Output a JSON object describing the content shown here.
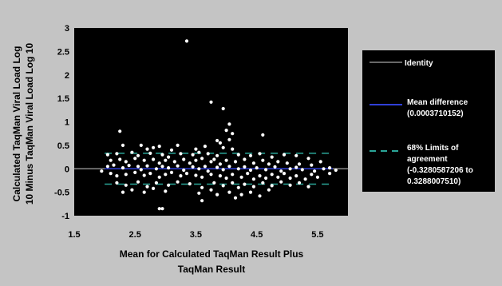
{
  "chart_data": {
    "type": "scatter",
    "xlabel": [
      "Mean for Calculated TaqMan Result Plus",
      "TaqMan Result"
    ],
    "ylabel": [
      "Calculated TaqMan Viral Load Log",
      "10 Minus TaqMan Viral Load Log 10"
    ],
    "xlim": [
      1.5,
      6.0
    ],
    "ylim": [
      -1,
      3
    ],
    "xticks": [
      "1.5",
      "2.5",
      "3.5",
      "4.5",
      "5.5"
    ],
    "xtick_values": [
      1.5,
      2.5,
      3.5,
      4.5,
      5.5
    ],
    "yticks": [
      "3",
      "2.5",
      "2",
      "1.5",
      "1",
      "0.5",
      "0",
      "-0.5",
      "-1"
    ],
    "ytick_values": [
      3,
      2.5,
      2,
      1.5,
      1,
      0.5,
      0,
      -0.5,
      -1
    ],
    "grid": false,
    "legend_position": "right",
    "lines": {
      "identity": 0,
      "mean_difference": 0.0003710152,
      "limits_of_agreement": [
        -0.3280587206,
        0.328800751
      ]
    },
    "colors": {
      "plot_background": "#000000",
      "page_background": "#c4c4c4",
      "points": "#ffffff",
      "identity_line": "#8a8a8a",
      "mean_line": "#2f3fd8",
      "limits_line": "#2aa598"
    },
    "legend": [
      {
        "key": "identity",
        "lines": [
          "Identity"
        ],
        "style": "solid",
        "color": "#8a8a8a"
      },
      {
        "key": "mean",
        "lines": [
          "Mean difference",
          "(0.0003710152)"
        ],
        "style": "solid",
        "color": "#2f3fd8"
      },
      {
        "key": "limits",
        "lines": [
          "68% Limits of",
          "agreement",
          "(-0.3280587206 to",
          "0.3288007510)"
        ],
        "style": "dashed",
        "color": "#2aa598"
      }
    ],
    "points": [
      [
        3.35,
        2.72
      ],
      [
        3.75,
        1.42
      ],
      [
        3.95,
        1.28
      ],
      [
        4.05,
        0.95
      ],
      [
        4.0,
        0.82
      ],
      [
        4.1,
        0.75
      ],
      [
        2.25,
        0.8
      ],
      [
        4.6,
        0.72
      ],
      [
        3.85,
        0.6
      ],
      [
        3.9,
        0.55
      ],
      [
        4.05,
        0.62
      ],
      [
        2.3,
        0.5
      ],
      [
        2.6,
        0.5
      ],
      [
        3.2,
        0.5
      ],
      [
        3.65,
        0.48
      ],
      [
        3.95,
        0.45
      ],
      [
        4.1,
        0.42
      ],
      [
        2.8,
        0.45
      ],
      [
        2.9,
        0.48
      ],
      [
        3.5,
        0.42
      ],
      [
        3.1,
        0.4
      ],
      [
        2.7,
        0.42
      ],
      [
        2.05,
        0.3
      ],
      [
        2.2,
        0.32
      ],
      [
        2.45,
        0.35
      ],
      [
        2.55,
        0.28
      ],
      [
        2.75,
        0.33
      ],
      [
        2.95,
        0.3
      ],
      [
        3.05,
        0.25
      ],
      [
        3.25,
        0.32
      ],
      [
        3.45,
        0.3
      ],
      [
        3.55,
        0.35
      ],
      [
        3.7,
        0.32
      ],
      [
        3.85,
        0.28
      ],
      [
        4.2,
        0.3
      ],
      [
        4.4,
        0.28
      ],
      [
        4.55,
        0.32
      ],
      [
        4.75,
        0.25
      ],
      [
        4.95,
        0.3
      ],
      [
        5.15,
        0.28
      ],
      [
        5.35,
        0.22
      ],
      [
        5.55,
        0.15
      ],
      [
        2.1,
        0.18
      ],
      [
        2.25,
        0.2
      ],
      [
        2.35,
        0.15
      ],
      [
        2.5,
        0.22
      ],
      [
        2.65,
        0.18
      ],
      [
        2.8,
        0.2
      ],
      [
        2.9,
        0.12
      ],
      [
        3.0,
        0.18
      ],
      [
        3.15,
        0.15
      ],
      [
        3.3,
        0.2
      ],
      [
        3.4,
        0.12
      ],
      [
        3.5,
        0.18
      ],
      [
        3.6,
        0.22
      ],
      [
        3.75,
        0.15
      ],
      [
        3.8,
        0.2
      ],
      [
        3.9,
        0.1
      ],
      [
        4.0,
        0.18
      ],
      [
        4.15,
        0.15
      ],
      [
        4.3,
        0.2
      ],
      [
        4.45,
        0.12
      ],
      [
        4.6,
        0.18
      ],
      [
        4.7,
        0.1
      ],
      [
        4.85,
        0.15
      ],
      [
        5.0,
        0.12
      ],
      [
        5.2,
        0.1
      ],
      [
        5.4,
        0.08
      ],
      [
        1.95,
        -0.05
      ],
      [
        2.05,
        0.05
      ],
      [
        2.15,
        0.08
      ],
      [
        2.3,
        0.02
      ],
      [
        2.4,
        0.07
      ],
      [
        2.55,
        0.05
      ],
      [
        2.6,
        -0.02
      ],
      [
        2.7,
        0.06
      ],
      [
        2.85,
        0.0
      ],
      [
        2.95,
        0.05
      ],
      [
        3.05,
        0.02
      ],
      [
        3.2,
        0.06
      ],
      [
        3.3,
        -0.03
      ],
      [
        3.45,
        0.04
      ],
      [
        3.55,
        0.0
      ],
      [
        3.65,
        0.05
      ],
      [
        3.7,
        -0.05
      ],
      [
        3.85,
        0.03
      ],
      [
        3.95,
        -0.02
      ],
      [
        4.05,
        0.05
      ],
      [
        4.2,
        0.0
      ],
      [
        4.3,
        0.04
      ],
      [
        4.4,
        -0.03
      ],
      [
        4.5,
        0.02
      ],
      [
        4.65,
        -0.02
      ],
      [
        4.8,
        0.04
      ],
      [
        4.9,
        -0.05
      ],
      [
        5.05,
        0.0
      ],
      [
        5.15,
        0.03
      ],
      [
        5.25,
        -0.02
      ],
      [
        5.45,
        -0.05
      ],
      [
        5.6,
        0.0
      ],
      [
        5.7,
        0.02
      ],
      [
        5.8,
        -0.03
      ],
      [
        2.1,
        -0.1
      ],
      [
        2.2,
        -0.15
      ],
      [
        2.35,
        -0.12
      ],
      [
        2.5,
        -0.08
      ],
      [
        2.65,
        -0.14
      ],
      [
        2.75,
        -0.1
      ],
      [
        2.9,
        -0.18
      ],
      [
        3.0,
        -0.12
      ],
      [
        3.1,
        -0.08
      ],
      [
        3.25,
        -0.15
      ],
      [
        3.35,
        -0.1
      ],
      [
        3.5,
        -0.14
      ],
      [
        3.6,
        -0.18
      ],
      [
        3.75,
        -0.12
      ],
      [
        3.9,
        -0.15
      ],
      [
        4.0,
        -0.2
      ],
      [
        4.1,
        -0.12
      ],
      [
        4.25,
        -0.18
      ],
      [
        4.35,
        -0.1
      ],
      [
        4.45,
        -0.22
      ],
      [
        4.55,
        -0.15
      ],
      [
        4.65,
        -0.2
      ],
      [
        4.75,
        -0.12
      ],
      [
        4.85,
        -0.18
      ],
      [
        4.95,
        -0.1
      ],
      [
        5.05,
        -0.2
      ],
      [
        5.15,
        -0.15
      ],
      [
        5.3,
        -0.22
      ],
      [
        5.4,
        -0.12
      ],
      [
        5.5,
        -0.18
      ],
      [
        5.7,
        -0.1
      ],
      [
        2.2,
        -0.3
      ],
      [
        2.35,
        -0.35
      ],
      [
        2.55,
        -0.28
      ],
      [
        2.7,
        -0.38
      ],
      [
        2.85,
        -0.3
      ],
      [
        3.05,
        -0.35
      ],
      [
        3.2,
        -0.28
      ],
      [
        3.4,
        -0.32
      ],
      [
        3.6,
        -0.4
      ],
      [
        3.8,
        -0.3
      ],
      [
        3.95,
        -0.36
      ],
      [
        4.1,
        -0.3
      ],
      [
        4.2,
        -0.4
      ],
      [
        4.3,
        -0.33
      ],
      [
        4.45,
        -0.38
      ],
      [
        4.6,
        -0.3
      ],
      [
        4.75,
        -0.36
      ],
      [
        4.9,
        -0.28
      ],
      [
        5.05,
        -0.35
      ],
      [
        5.2,
        -0.3
      ],
      [
        5.35,
        -0.38
      ],
      [
        2.3,
        -0.5
      ],
      [
        2.45,
        -0.45
      ],
      [
        2.65,
        -0.5
      ],
      [
        2.8,
        -0.42
      ],
      [
        3.0,
        -0.48
      ],
      [
        3.55,
        -0.52
      ],
      [
        3.75,
        -0.45
      ],
      [
        4.05,
        -0.5
      ],
      [
        4.25,
        -0.55
      ],
      [
        4.4,
        -0.5
      ],
      [
        4.55,
        -0.58
      ],
      [
        4.7,
        -0.45
      ],
      [
        3.6,
        -0.68
      ],
      [
        3.85,
        -0.55
      ],
      [
        2.9,
        -0.85
      ],
      [
        2.95,
        -0.85
      ],
      [
        4.15,
        -0.62
      ]
    ]
  }
}
